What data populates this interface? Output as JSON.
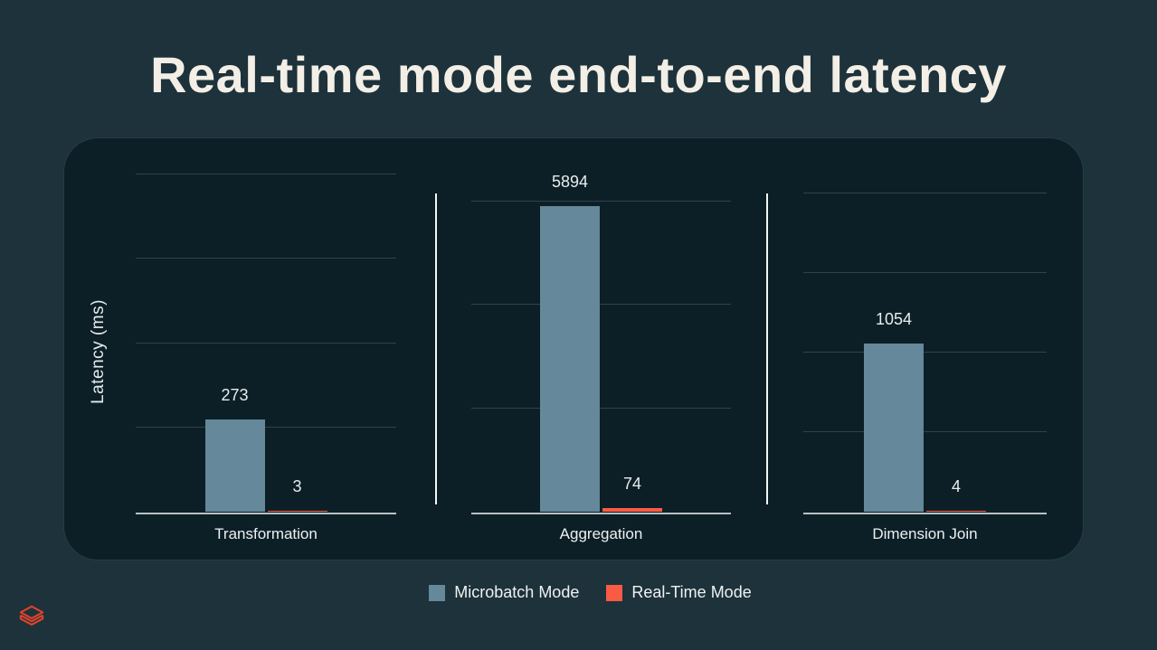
{
  "slide": {
    "title": "Real-time mode end-to-end latency",
    "background_color": "#1D323A",
    "panel_background_color": "#0C1F27"
  },
  "logo": {
    "icon": "databricks-layers-icon",
    "color": "#E0422C"
  },
  "chart_data": {
    "type": "bar",
    "title": "Real-time mode end-to-end latency",
    "ylabel": "Latency (ms)",
    "xlabel": "",
    "grid": true,
    "legend_position": "bottom",
    "categories": [
      "Transformation",
      "Aggregation",
      "Dimension Join"
    ],
    "series": [
      {
        "name": "Microbatch Mode",
        "color": "#65889A",
        "values": [
          273,
          5894,
          1054
        ]
      },
      {
        "name": "Real-Time Mode",
        "color": "#FA5B43",
        "values": [
          3,
          74,
          4
        ]
      }
    ],
    "value_labels": [
      [
        "273",
        "3"
      ],
      [
        "5894",
        "74"
      ],
      [
        "1054",
        "4"
      ]
    ],
    "panels": [
      {
        "category": "Transformation",
        "ylim": [
          0,
          1000
        ],
        "grid_step": 250
      },
      {
        "category": "Aggregation",
        "ylim": [
          0,
          6000
        ],
        "grid_step": 2000
      },
      {
        "category": "Dimension Join",
        "ylim": [
          0,
          2000
        ],
        "grid_step": 500
      }
    ]
  },
  "legend": {
    "items": [
      {
        "label": "Microbatch Mode",
        "color": "#65889A"
      },
      {
        "label": "Real-Time Mode",
        "color": "#FA5B43"
      }
    ]
  }
}
